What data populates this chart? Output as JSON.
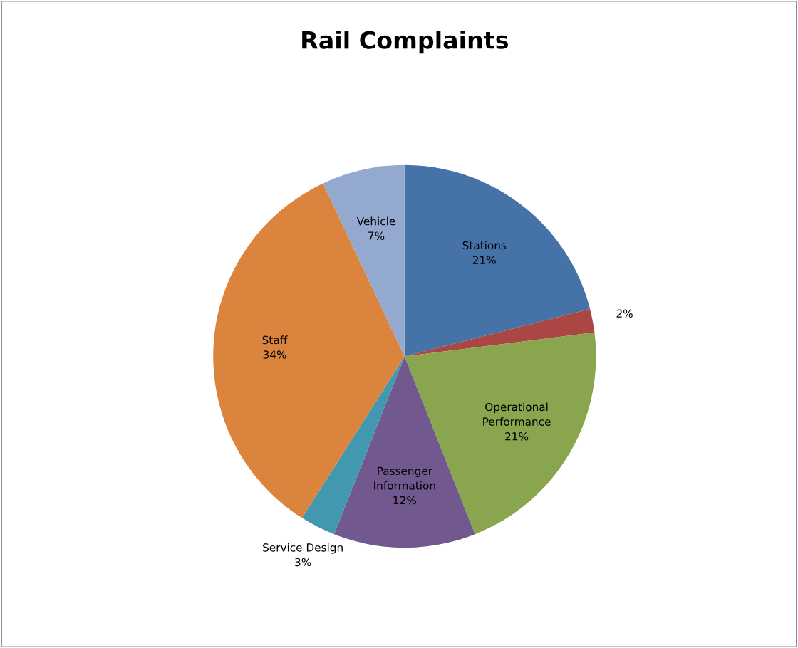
{
  "chart_data": {
    "type": "pie",
    "title": "Rail Complaints",
    "categories": [
      "Stations",
      null,
      "Operational\nPerformance",
      "Passenger\nInformation",
      "Service Design",
      "Staff",
      "Vehicle"
    ],
    "values": [
      21,
      2,
      21,
      12,
      3,
      34,
      7
    ],
    "colors": [
      "#4572a7",
      "#aa4643",
      "#89a54e",
      "#71588f",
      "#4198af",
      "#db843d",
      "#93a9cf"
    ],
    "value_labels": [
      "21%",
      "2%",
      "21%",
      "12%",
      "3%",
      "34%",
      "7%"
    ],
    "legend": false
  }
}
